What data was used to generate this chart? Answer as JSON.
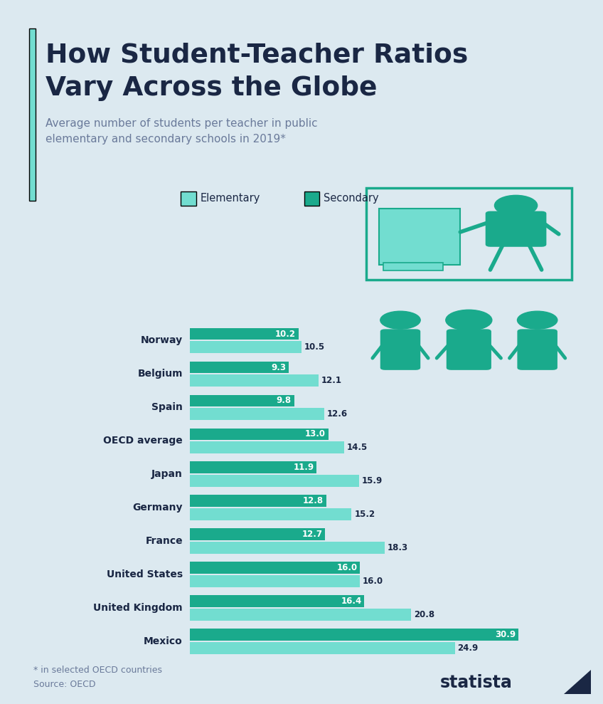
{
  "title_line1": "How Student-Teacher Ratios",
  "title_line2": "Vary Across the Globe",
  "subtitle": "Average number of students per teacher in public\nelementary and secondary schools in 2019*",
  "footnote": "* in selected OECD countries\nSource: OECD",
  "legend_elementary": "Elementary",
  "legend_secondary": "Secondary",
  "categories": [
    "Norway",
    "Belgium",
    "Spain",
    "OECD average",
    "Japan",
    "Germany",
    "France",
    "United States",
    "United Kingdom",
    "Mexico"
  ],
  "elementary": [
    10.5,
    12.1,
    12.6,
    14.5,
    15.9,
    15.2,
    18.3,
    16.0,
    20.8,
    24.9
  ],
  "secondary": [
    10.2,
    9.3,
    9.8,
    13.0,
    11.9,
    12.8,
    12.7,
    16.0,
    16.4,
    30.9
  ],
  "color_elementary": "#72ddd0",
  "color_secondary": "#1aaa8c",
  "color_background": "#dce9f0",
  "color_title": "#1a2744",
  "color_subtitle": "#6a7a9a",
  "color_accent_bar": "#72ddd0",
  "color_footnote": "#6a7a9a",
  "bar_label_color_elementary": "#1a2744",
  "bar_label_color_secondary": "#ffffff",
  "xlim": 36
}
